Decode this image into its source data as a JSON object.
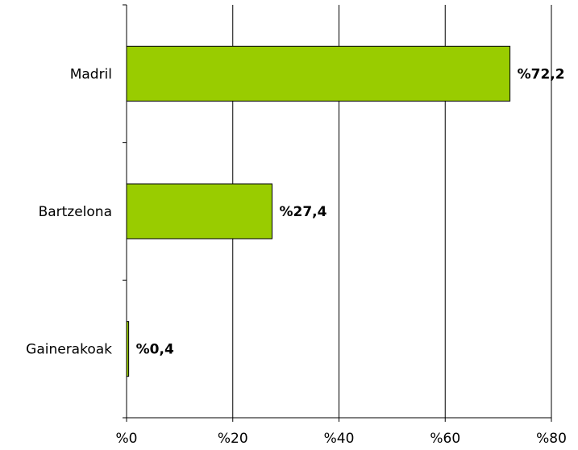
{
  "chart_data": {
    "type": "bar",
    "orientation": "horizontal",
    "categories": [
      "Madril",
      "Bartzelona",
      "Gainerakoak"
    ],
    "values": [
      72.2,
      27.4,
      0.4
    ],
    "value_labels": [
      "%72,2",
      "%27,4",
      "%0,4"
    ],
    "xlim": [
      0,
      80
    ],
    "x_ticks": [
      0,
      20,
      40,
      60,
      80
    ],
    "x_tick_labels": [
      "%0",
      "%20",
      "%40",
      "%60",
      "%80"
    ],
    "title": "",
    "xlabel": "",
    "ylabel": "",
    "grid": "vertical",
    "legend": "none",
    "bar_color": "#99cc00",
    "bar_border_color": "#000000"
  }
}
